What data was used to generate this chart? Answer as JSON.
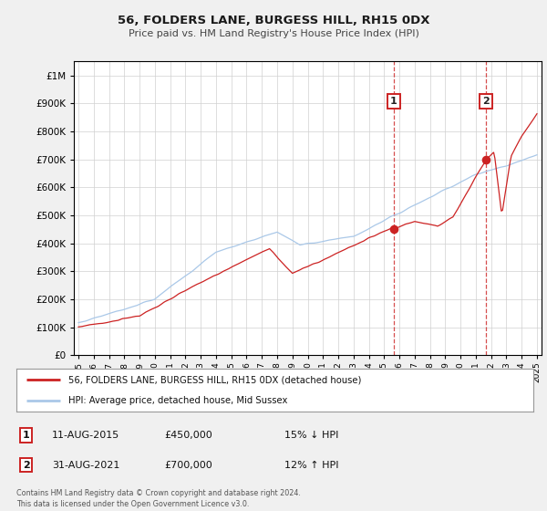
{
  "title": "56, FOLDERS LANE, BURGESS HILL, RH15 0DX",
  "subtitle": "Price paid vs. HM Land Registry's House Price Index (HPI)",
  "background_color": "#f0f0f0",
  "plot_bg_color": "#ffffff",
  "hpi_color": "#aac8e8",
  "price_color": "#cc2222",
  "sale1_date": 2015.62,
  "sale1_price": 450000,
  "sale2_date": 2021.67,
  "sale2_price": 700000,
  "ylim_max": 1050000,
  "xlim_min": 1994.7,
  "xlim_max": 2025.3,
  "legend_entry1": "56, FOLDERS LANE, BURGESS HILL, RH15 0DX (detached house)",
  "legend_entry2": "HPI: Average price, detached house, Mid Sussex",
  "annotation1_date": "11-AUG-2015",
  "annotation1_price": "£450,000",
  "annotation1_hpi": "15% ↓ HPI",
  "annotation2_date": "31-AUG-2021",
  "annotation2_price": "£700,000",
  "annotation2_hpi": "12% ↑ HPI",
  "footer": "Contains HM Land Registry data © Crown copyright and database right 2024.\nThis data is licensed under the Open Government Licence v3.0."
}
